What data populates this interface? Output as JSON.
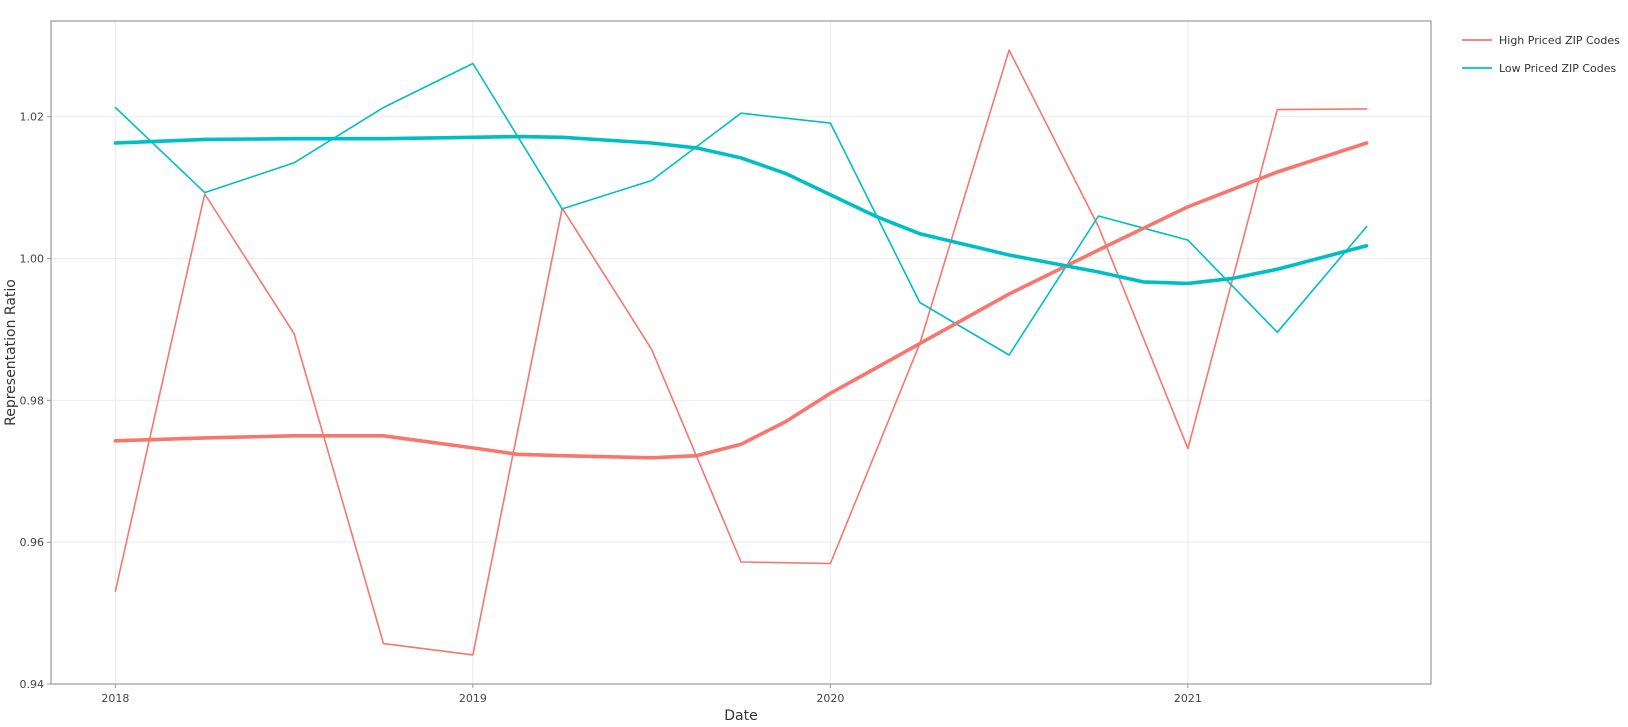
{
  "chart_data": {
    "type": "line",
    "xlabel": "Date",
    "ylabel": "Representation Ratio",
    "xlim": [
      2017.82,
      2021.68
    ],
    "ylim": [
      0.94,
      1.0335
    ],
    "x_ticks": [
      2018,
      2019,
      2020,
      2021
    ],
    "x_tick_labels": [
      "2018",
      "2019",
      "2020",
      "2021"
    ],
    "y_ticks": [
      0.94,
      0.96,
      0.98,
      1.0,
      1.02
    ],
    "y_tick_labels": [
      "0.94",
      "0.96",
      "0.98",
      "1.00",
      "1.02"
    ],
    "grid": true,
    "legend_position": "top-right",
    "series": [
      {
        "name": "High Priced ZIP Codes",
        "color": "#F8766D",
        "style": "raw",
        "x": [
          2018.0,
          2018.25,
          2018.5,
          2018.75,
          2019.0,
          2019.25,
          2019.5,
          2019.75,
          2020.0,
          2020.25,
          2020.5,
          2020.75,
          2021.0,
          2021.25,
          2021.5
        ],
        "y": [
          0.9531,
          1.0091,
          0.9894,
          0.9457,
          0.9441,
          1.0071,
          0.9872,
          0.9572,
          0.957,
          0.988,
          1.0294,
          1.0045,
          0.9732,
          1.021,
          1.0211
        ]
      },
      {
        "name": "Low Priced ZIP Codes",
        "color": "#00BFC4",
        "style": "raw",
        "x": [
          2018.0,
          2018.25,
          2018.5,
          2018.75,
          2019.0,
          2019.25,
          2019.5,
          2019.75,
          2020.0,
          2020.25,
          2020.5,
          2020.75,
          2021.0,
          2021.25,
          2021.5
        ],
        "y": [
          1.0213,
          1.0093,
          1.0135,
          1.0213,
          1.0275,
          1.007,
          1.011,
          1.0205,
          1.0191,
          0.9938,
          0.9864,
          1.006,
          1.0026,
          0.9896,
          1.0045
        ]
      },
      {
        "color": "#F8766D",
        "style": "smooth",
        "x": [
          2018.0,
          2018.25,
          2018.5,
          2018.75,
          2019.0,
          2019.125,
          2019.25,
          2019.5,
          2019.625,
          2019.75,
          2019.875,
          2020.0,
          2020.125,
          2020.25,
          2020.5,
          2020.75,
          2021.0,
          2021.25,
          2021.5
        ],
        "y": [
          0.9743,
          0.9747,
          0.975,
          0.975,
          0.9733,
          0.9724,
          0.9722,
          0.9719,
          0.9722,
          0.9738,
          0.977,
          0.981,
          0.9845,
          0.988,
          0.995,
          1.0012,
          1.0073,
          1.0122,
          1.0163
        ]
      },
      {
        "color": "#00BFC4",
        "style": "smooth",
        "x": [
          2018.0,
          2018.25,
          2018.5,
          2018.75,
          2019.0,
          2019.125,
          2019.25,
          2019.5,
          2019.625,
          2019.75,
          2019.875,
          2020.0,
          2020.125,
          2020.25,
          2020.5,
          2020.75,
          2020.875,
          2021.0,
          2021.125,
          2021.25,
          2021.5
        ],
        "y": [
          1.0163,
          1.0168,
          1.0169,
          1.0169,
          1.0171,
          1.0172,
          1.0171,
          1.0163,
          1.0156,
          1.0142,
          1.012,
          1.009,
          1.006,
          1.0035,
          1.0005,
          0.9981,
          0.9967,
          0.9965,
          0.9972,
          0.9985,
          1.0018
        ]
      }
    ]
  }
}
